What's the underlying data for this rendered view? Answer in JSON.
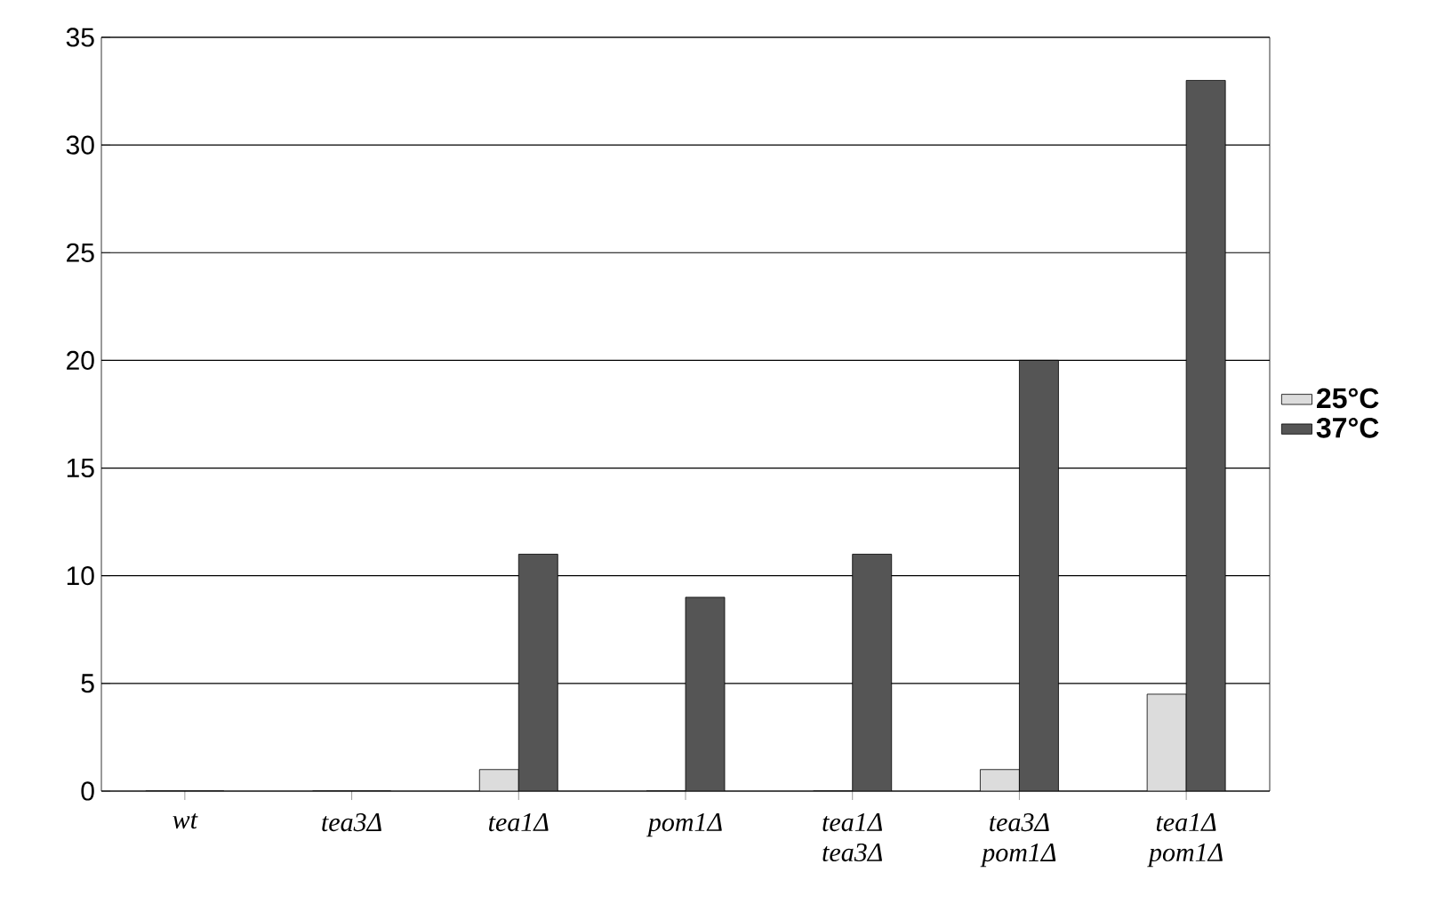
{
  "chart_data": {
    "type": "bar",
    "categories": [
      "wt",
      "tea3Δ",
      "tea1Δ",
      "pom1Δ",
      "tea1Δ tea3Δ",
      "tea3Δ pom1Δ",
      "tea1Δ pom1Δ"
    ],
    "series": [
      {
        "name": "25°C",
        "color": "#dcdcdc",
        "values": [
          0,
          0,
          1,
          0,
          0,
          1,
          4.5
        ]
      },
      {
        "name": "37°C",
        "color": "#555555",
        "values": [
          0,
          0,
          11,
          9,
          11,
          20,
          33
        ]
      }
    ],
    "ylim": [
      0,
      35
    ],
    "yticks": [
      0,
      5,
      10,
      15,
      20,
      25,
      30,
      35
    ],
    "grid": "y",
    "legend": "right"
  }
}
